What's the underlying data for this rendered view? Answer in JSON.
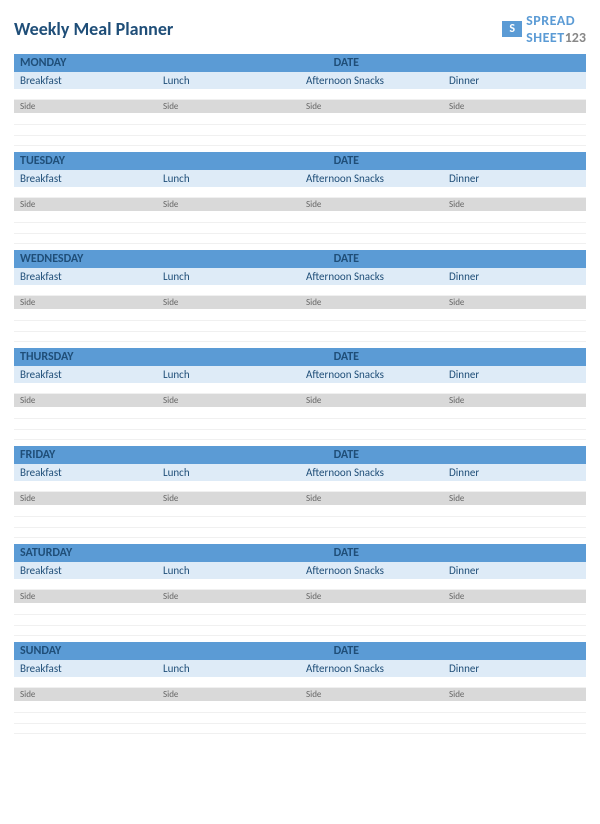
{
  "title": "Weekly Meal Planner",
  "logo": {
    "brand_main": "SPREAD",
    "brand_sub": "SHEET",
    "brand_num": "123"
  },
  "date_label": "DATE",
  "meal_columns": [
    "Breakfast",
    "Lunch",
    "Afternoon Snacks",
    "Dinner"
  ],
  "side_label": "Side",
  "days": [
    {
      "name": "MONDAY"
    },
    {
      "name": "TUESDAY"
    },
    {
      "name": "WEDNESDAY"
    },
    {
      "name": "THURSDAY"
    },
    {
      "name": "FRIDAY"
    },
    {
      "name": "SATURDAY"
    },
    {
      "name": "SUNDAY"
    }
  ],
  "colors": {
    "header_bg": "#5b9bd5",
    "header_text": "#1f4e78",
    "meals_bg": "#deebf7",
    "side_bg": "#d9d9d9",
    "title_color": "#1f4e78"
  }
}
